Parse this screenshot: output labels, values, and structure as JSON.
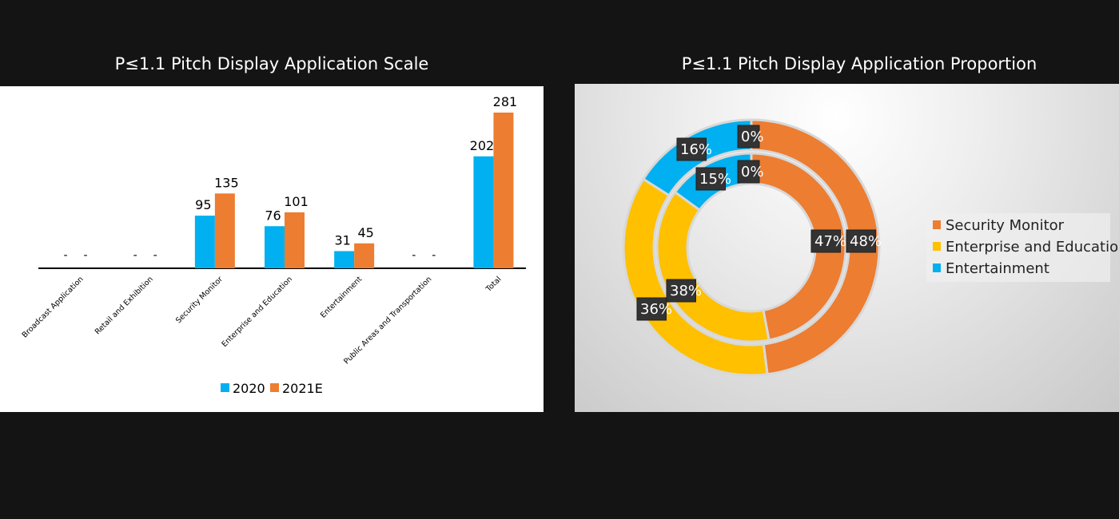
{
  "chart_data": [
    {
      "type": "bar",
      "title": "P≤1.1 Pitch Display Application Scale",
      "categories": [
        "Broadcast Application",
        "Retail and Exhibition",
        "Security Monitor",
        "Enterprise and Education",
        "Entertainment",
        "Public Areas and Transportation",
        "Total"
      ],
      "series": [
        {
          "name": "2020",
          "color": "#00b0f0",
          "values": [
            null,
            null,
            95,
            76,
            31,
            null,
            202
          ],
          "labels": [
            "-",
            "-",
            "95",
            "76",
            "31",
            "-",
            "202"
          ]
        },
        {
          "name": "2021E",
          "color": "#ed7d31",
          "values": [
            null,
            null,
            135,
            101,
            45,
            null,
            281
          ],
          "labels": [
            "-",
            "-",
            "135",
            "101",
            "45",
            "-",
            "281"
          ]
        }
      ],
      "ylim": [
        0,
        300
      ],
      "grid": false,
      "legend": "bottom"
    },
    {
      "type": "pie",
      "subtype": "double-donut",
      "title": "P≤1.1 Pitch Display Application Proportion",
      "categories": [
        "Security Monitor",
        "Enterprise and Education",
        "Entertainment"
      ],
      "colors": [
        "#ed7d31",
        "#ffc000",
        "#00b0f0"
      ],
      "rings": [
        {
          "ring": "inner",
          "values": [
            47,
            38,
            15
          ],
          "labels": [
            "47%",
            "38%",
            "15%"
          ],
          "extra_label": "0%"
        },
        {
          "ring": "outer",
          "values": [
            48,
            36,
            16
          ],
          "labels": [
            "48%",
            "36%",
            "16%"
          ],
          "extra_label": "0%"
        }
      ],
      "legend": "right"
    }
  ]
}
